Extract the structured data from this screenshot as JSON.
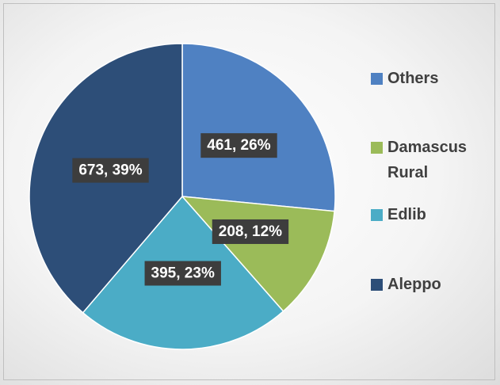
{
  "chart_data": {
    "type": "pie",
    "categories": [
      "Others",
      "Damascus Rural",
      "Edlib",
      "Aleppo"
    ],
    "values": [
      461,
      208,
      395,
      673
    ],
    "value_labels": [
      "461, 26%",
      "208, 12%",
      "395, 23%",
      "673, 39%"
    ],
    "colors": [
      "#4f81c2",
      "#9bbb59",
      "#4bacc6",
      "#2d4e78"
    ],
    "legend": "right"
  }
}
